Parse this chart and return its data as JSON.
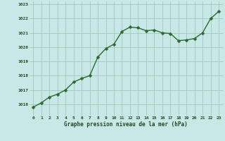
{
  "x": [
    0,
    1,
    2,
    3,
    4,
    5,
    6,
    7,
    8,
    9,
    10,
    11,
    12,
    13,
    14,
    15,
    16,
    17,
    18,
    19,
    20,
    21,
    22,
    23
  ],
  "y": [
    1015.8,
    1016.1,
    1016.5,
    1016.7,
    1017.0,
    1017.55,
    1017.8,
    1018.0,
    1019.3,
    1019.9,
    1020.2,
    1021.1,
    1021.4,
    1021.35,
    1021.15,
    1021.2,
    1021.0,
    1020.95,
    1020.45,
    1020.5,
    1020.6,
    1021.0,
    1022.0,
    1022.5
  ],
  "line_color": "#2d6a2d",
  "marker_color": "#2d6a2d",
  "bg_color": "#c8e8e8",
  "grid_color": "#a0c8b8",
  "xlabel": "Graphe pression niveau de la mer (hPa)",
  "xlabel_color": "#1a4d1a",
  "tick_label_color": "#1a4d1a",
  "ylim": [
    1015.2,
    1023.2
  ],
  "yticks": [
    1016,
    1017,
    1018,
    1019,
    1020,
    1021,
    1022,
    1023
  ],
  "xticks": [
    0,
    1,
    2,
    3,
    4,
    5,
    6,
    7,
    8,
    9,
    10,
    11,
    12,
    13,
    14,
    15,
    16,
    17,
    18,
    19,
    20,
    21,
    22,
    23
  ],
  "marker_size": 2.5,
  "line_width": 1.0
}
